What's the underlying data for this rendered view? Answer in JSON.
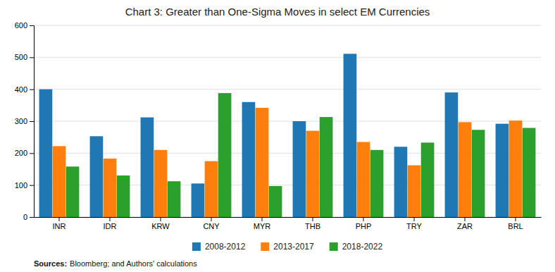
{
  "chart_data": {
    "type": "bar",
    "title": "Chart 3: Greater than One-Sigma Moves in select EM Currencies",
    "categories": [
      "INR",
      "IDR",
      "KRW",
      "CNY",
      "MYR",
      "THB",
      "PHP",
      "TRY",
      "ZAR",
      "BRL"
    ],
    "series": [
      {
        "name": "2008-2012",
        "values": [
          400,
          253,
          312,
          105,
          360,
          300,
          511,
          220,
          390,
          292
        ]
      },
      {
        "name": "2013-2017",
        "values": [
          222,
          183,
          210,
          175,
          342,
          270,
          235,
          162,
          297,
          302
        ]
      },
      {
        "name": "2018-2022",
        "values": [
          158,
          130,
          112,
          388,
          97,
          313,
          210,
          233,
          273,
          279
        ]
      }
    ],
    "ylim": [
      0,
      600
    ],
    "yticks": [
      0,
      100,
      200,
      300,
      400,
      500,
      600
    ],
    "grid": true,
    "legend": "bottom",
    "annotations": [
      "Sources:",
      "Bloomberg; and Authors' calculations"
    ]
  }
}
